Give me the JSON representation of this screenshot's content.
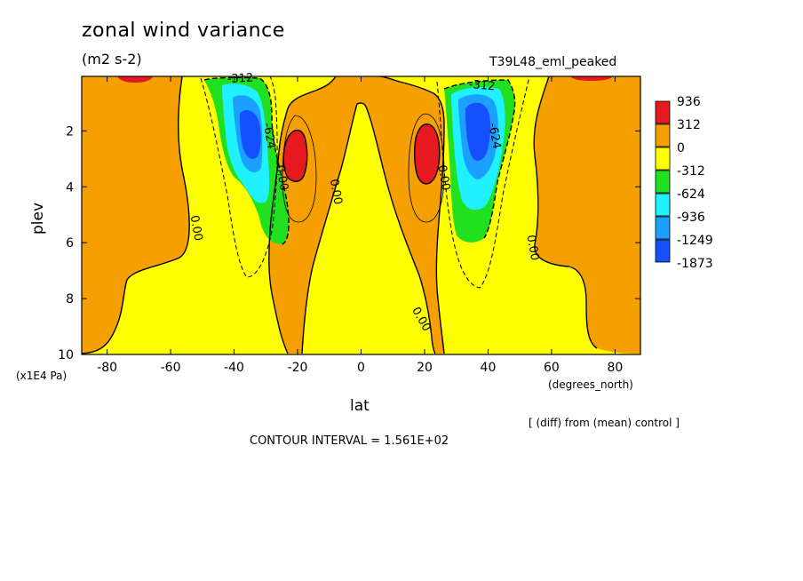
{
  "colors": {
    "red": "#e6191f",
    "orange": "#f5a000",
    "yellow": "#ffff00",
    "green": "#20e020",
    "cyan": "#20f0ff",
    "lightblue": "#1ca0ff",
    "blue": "#1450ff"
  },
  "chart_data": {
    "type": "contour",
    "title": "zonal wind variance",
    "units": "(m2 s-2)",
    "run": "T39L48_eml_peaked",
    "xlabel": "lat",
    "ylabel": "plev",
    "x_unit_label": "(degrees_north)",
    "y_unit_label": "(x1E4 Pa)",
    "xlim": [
      -88,
      88
    ],
    "ylim": [
      10,
      0.05
    ],
    "xticks": [
      -80,
      -60,
      -40,
      -20,
      0,
      20,
      40,
      60,
      80
    ],
    "xtick_labels": [
      "-80",
      "-60",
      "-40",
      "-20",
      "0",
      "20",
      "40",
      "60",
      "80"
    ],
    "yticks": [
      2,
      4,
      6,
      8,
      10
    ],
    "ytick_labels": [
      "2",
      "4",
      "6",
      "8",
      "10"
    ],
    "contour_interval_text": "CONTOUR INTERVAL = 1.561E+02",
    "note": "[ (diff) from (mean) control ]",
    "contour_labels": [
      {
        "text": "-312",
        "lat": -38,
        "plev": 0.25
      },
      {
        "text": "-624",
        "lat": -30,
        "plev": 2.2
      },
      {
        "text": "0.00",
        "lat": -26,
        "plev": 3.7
      },
      {
        "text": "0.00",
        "lat": -53,
        "plev": 5.5
      },
      {
        "text": "0.00",
        "lat": -9,
        "plev": 4.2
      },
      {
        "text": "0.00",
        "lat": 25,
        "plev": 3.7
      },
      {
        "text": "-312",
        "lat": 38,
        "plev": 0.5
      },
      {
        "text": "-624",
        "lat": 41,
        "plev": 2.2
      },
      {
        "text": "0.00",
        "lat": 53,
        "plev": 6.2
      },
      {
        "text": "0.00",
        "lat": 18,
        "plev": 8.8
      }
    ],
    "colorbar": {
      "labels": [
        "936",
        "312",
        "0",
        "-312",
        "-624",
        "-936",
        "-1249",
        "-1873"
      ],
      "colors": [
        "#e6191f",
        "#f5a000",
        "#ffff00",
        "#20e020",
        "#20f0ff",
        "#1ca0ff",
        "#1450ff"
      ]
    },
    "features": [
      {
        "kind": "max",
        "lat": -20,
        "plev": 2.9,
        "level": ">624"
      },
      {
        "kind": "max",
        "lat": 20,
        "plev": 2.9,
        "level": ">624"
      },
      {
        "kind": "min",
        "lat": -35,
        "plev": 2.2,
        "level": "<-1249"
      },
      {
        "kind": "min",
        "lat": 35,
        "plev": 2.0,
        "level": "<-1249"
      }
    ]
  }
}
